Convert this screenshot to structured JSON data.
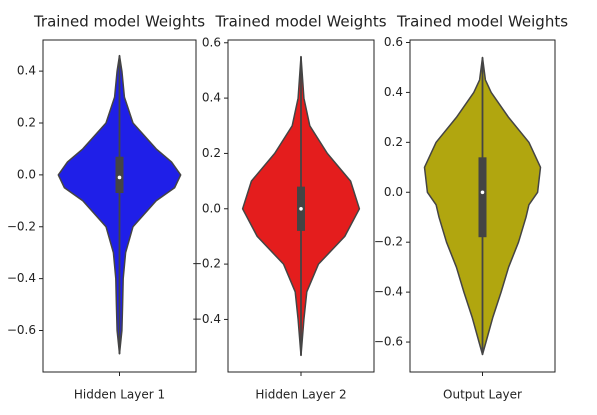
{
  "chart_data": [
    {
      "type": "violin",
      "title": "Trained model Weights",
      "categories": [
        "Hidden Layer 1"
      ],
      "color": "#1f1fe8",
      "ylim": [
        -0.76,
        0.52
      ],
      "yticks": [
        {
          "value": -0.6,
          "label": "−0.6"
        },
        {
          "value": -0.4,
          "label": "−0.4"
        },
        {
          "value": -0.2,
          "label": "−0.2"
        },
        {
          "value": 0.0,
          "label": "0.0"
        },
        0.2,
        0.4
      ],
      "min": -0.69,
      "q1": -0.07,
      "median": -0.01,
      "q3": 0.07,
      "max": 0.46,
      "kde": {
        "y": [
          0.46,
          0.4,
          0.3,
          0.2,
          0.1,
          0.05,
          0.0,
          -0.05,
          -0.1,
          -0.2,
          -0.3,
          -0.4,
          -0.5,
          -0.6,
          -0.69
        ],
        "width": [
          0,
          0.04,
          0.08,
          0.22,
          0.6,
          0.85,
          1,
          0.9,
          0.6,
          0.22,
          0.1,
          0.06,
          0.05,
          0.04,
          0
        ]
      }
    },
    {
      "type": "violin",
      "title": "Trained model Weights",
      "categories": [
        "Hidden Layer 2"
      ],
      "color": "#e41d1d",
      "ylim": [
        -0.59,
        0.61
      ],
      "yticks": [
        {
          "value": -0.4,
          "label": "−0.4"
        },
        {
          "value": -0.2,
          "label": "−0.2"
        },
        {
          "value": 0.0,
          "label": "0.0"
        },
        0.2,
        0.4,
        0.6
      ],
      "min": -0.53,
      "q1": -0.08,
      "median": 0.0,
      "q3": 0.08,
      "max": 0.55,
      "kde": {
        "y": [
          0.55,
          0.4,
          0.3,
          0.2,
          0.1,
          0.0,
          -0.1,
          -0.2,
          -0.3,
          -0.4,
          -0.53
        ],
        "width": [
          0,
          0.05,
          0.15,
          0.45,
          0.85,
          1,
          0.75,
          0.3,
          0.1,
          0.05,
          0
        ]
      }
    },
    {
      "type": "violin",
      "title": "Trained model Weights",
      "categories": [
        "Output Layer"
      ],
      "color": "#b1a60f",
      "ylim": [
        -0.72,
        0.61
      ],
      "yticks": [
        {
          "value": -0.6,
          "label": "−0.6"
        },
        {
          "value": -0.4,
          "label": "−0.4"
        },
        {
          "value": -0.2,
          "label": "−0.2"
        },
        {
          "value": 0.0,
          "label": "0.0"
        },
        0.2,
        0.4,
        0.6
      ],
      "min": -0.65,
      "q1": -0.18,
      "median": 0.0,
      "q3": 0.14,
      "max": 0.54,
      "kde": {
        "y": [
          0.54,
          0.45,
          0.4,
          0.3,
          0.2,
          0.1,
          0.0,
          -0.05,
          -0.1,
          -0.2,
          -0.3,
          -0.4,
          -0.5,
          -0.6,
          -0.65
        ],
        "width": [
          0,
          0.05,
          0.15,
          0.45,
          0.8,
          1,
          0.95,
          0.8,
          0.75,
          0.62,
          0.45,
          0.32,
          0.18,
          0.06,
          0
        ]
      }
    }
  ]
}
